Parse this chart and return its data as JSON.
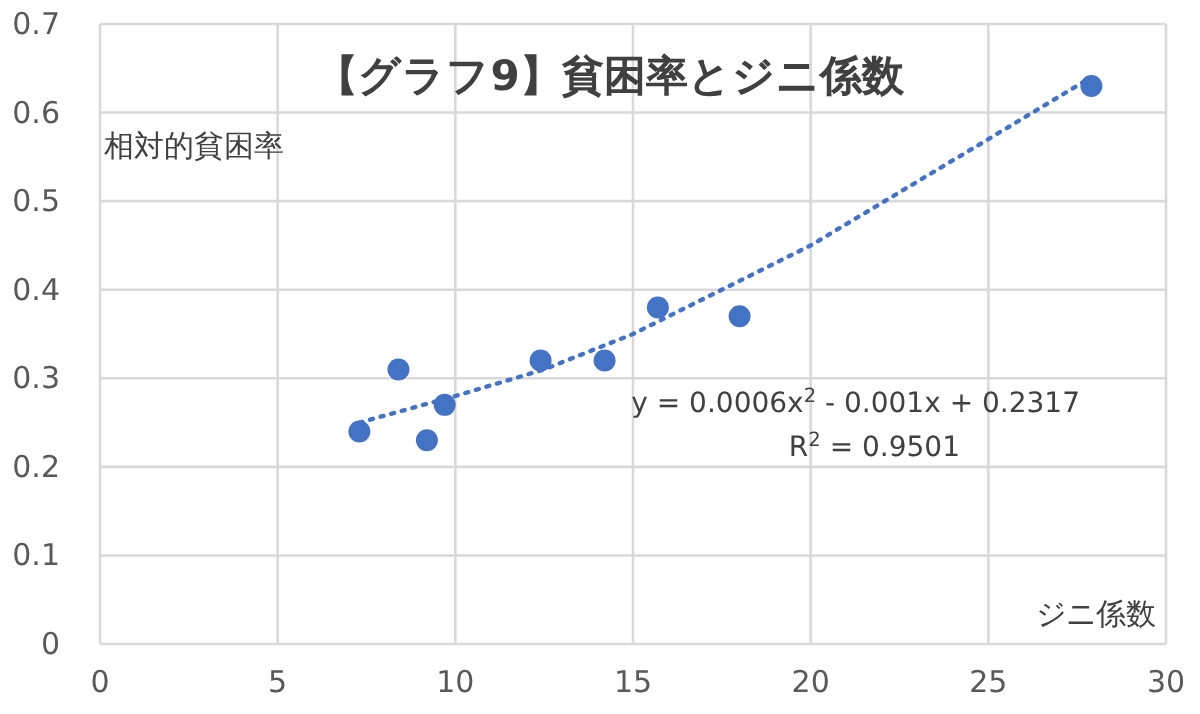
{
  "chart_data": {
    "type": "scatter",
    "title": "【グラフ9】貧困率とジニ係数",
    "xlabel": "ジニ係数",
    "ylabel": "相対的貧困率",
    "annotations": [
      "y = 0.0006x$^{2}$ - 0.001x + 0.2317",
      "R$^{2}$ = 0.9501"
    ],
    "xlim": [
      0,
      30
    ],
    "xticks": [
      0,
      5,
      10,
      15,
      20,
      25,
      30
    ],
    "ylim": [
      0,
      0.7
    ],
    "yticks": [
      0,
      0.1,
      0.2,
      0.3,
      0.4,
      0.5,
      0.6,
      0.7
    ],
    "grid": true,
    "marker": "circle",
    "series": [
      {
        "color": "#4472c4",
        "x": [
          7.3,
          8.4,
          9.2,
          9.7,
          12.4,
          14.2,
          15.7,
          18.0,
          27.9
        ],
        "values": [
          0.24,
          0.31,
          0.23,
          0.27,
          0.32,
          0.32,
          0.38,
          0.37,
          0.63
        ]
      },
      {
        "type": "line",
        "color": "#4472c4",
        "line_style": "dotted",
        "marker": "none",
        "x": [
          7.3,
          10,
          12.5,
          15,
          17.5,
          20,
          22.5,
          25,
          27.9
        ],
        "values": [
          0.25,
          0.28,
          0.31,
          0.35,
          0.4,
          0.45,
          0.51,
          0.57,
          0.64
        ]
      }
    ]
  }
}
